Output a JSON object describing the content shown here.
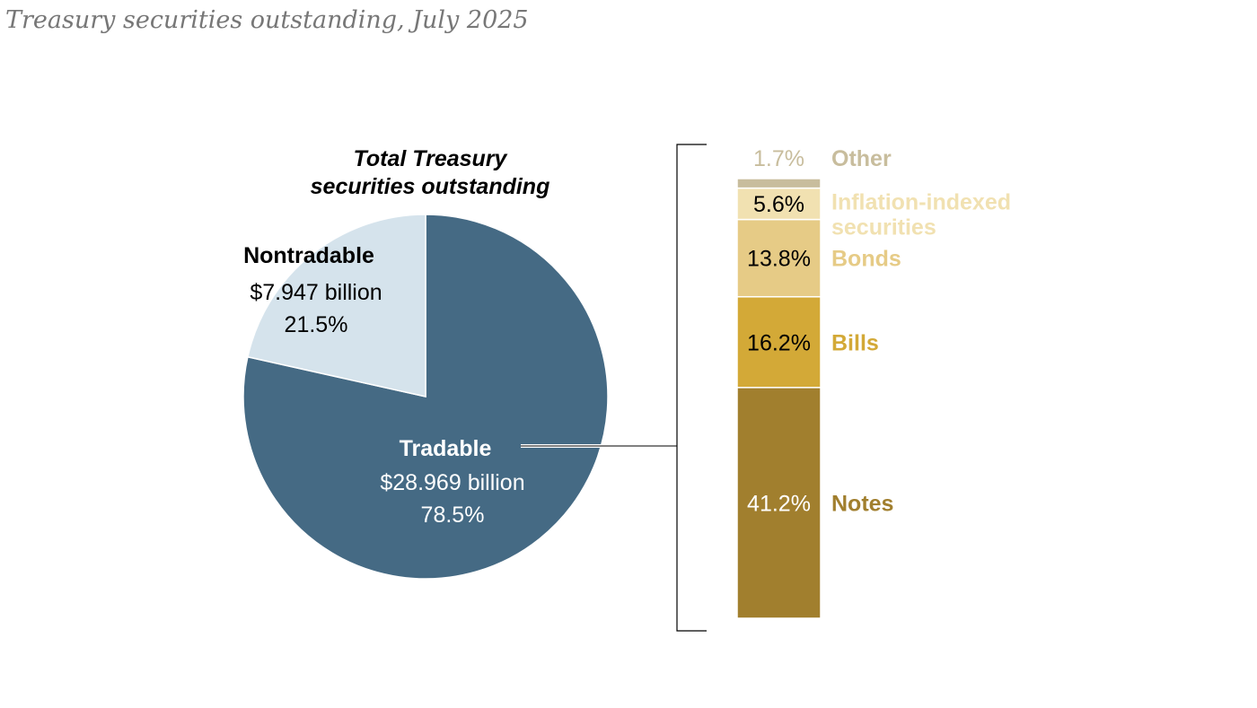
{
  "chart_data": {
    "type": "pie",
    "title": "Treasury securities outstanding, July 2025",
    "pie": {
      "heading_lines": [
        "Total Treasury",
        "securities outstanding"
      ],
      "slices": [
        {
          "name": "Tradable",
          "amount": "$28.969 billion",
          "percent_label": "78.5%",
          "value": 78.5,
          "color": "#456a84"
        },
        {
          "name": "Nontradable",
          "amount": "$7.947 billion",
          "percent_label": "21.5%",
          "value": 21.5,
          "color": "#d5e3ec"
        }
      ]
    },
    "breakdown": {
      "type": "stacked_bar",
      "of": "Tradable",
      "segments": [
        {
          "name": "Notes",
          "label_lines": [
            "Notes"
          ],
          "percent_label": "41.2%",
          "value": 41.2,
          "color": "#a17f2e",
          "value_text_color": "#ffffff"
        },
        {
          "name": "Bills",
          "label_lines": [
            "Bills"
          ],
          "percent_label": "16.2%",
          "value": 16.2,
          "color": "#d3a937",
          "value_text_color": "#000000"
        },
        {
          "name": "Bonds",
          "label_lines": [
            "Bonds"
          ],
          "percent_label": "13.8%",
          "value": 13.8,
          "color": "#e6cb86",
          "value_text_color": "#000000"
        },
        {
          "name": "Inflation-indexed securities",
          "label_lines": [
            "Inflation-indexed",
            "securities"
          ],
          "percent_label": "5.6%",
          "value": 5.6,
          "color": "#f1e1b1",
          "value_text_color": "#000000"
        },
        {
          "name": "Other",
          "label_lines": [
            "Other"
          ],
          "percent_label": "1.7%",
          "value": 1.7,
          "color": "#c8bd9d",
          "value_text_color": "#c8bd9d"
        }
      ]
    }
  }
}
